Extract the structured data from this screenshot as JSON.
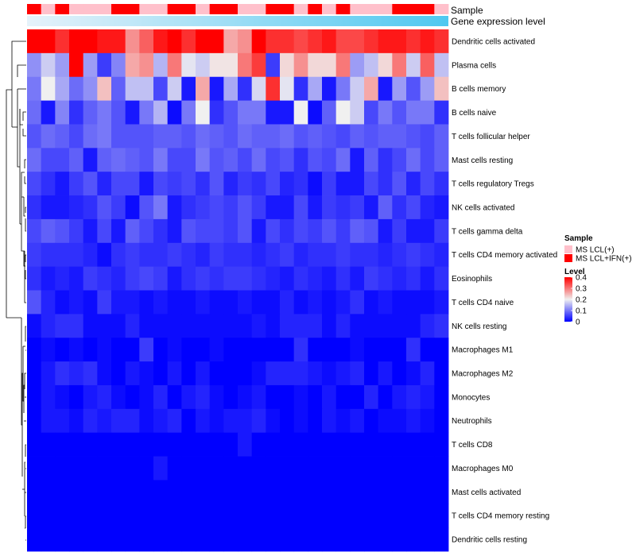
{
  "chart_data": {
    "type": "heatmap",
    "annotation_titles": {
      "sample": "Sample",
      "expression": "Gene expression level"
    },
    "legend": {
      "sample_title": "Sample",
      "sample_entries": [
        {
          "label": "MS LCL(+)",
          "color": "#ffc0cb"
        },
        {
          "label": "MS LCL+IFN(+)",
          "color": "#ff0000"
        }
      ],
      "level_title": "Level",
      "level_ticks": [
        "0.4",
        "0.3",
        "0.2",
        "0.1",
        "0"
      ],
      "level_tick_values": [
        0.4,
        0.3,
        0.2,
        0.1,
        0
      ]
    },
    "scale": {
      "min": 0,
      "mid": 0.2,
      "max": 0.4,
      "low_color": "#0000ff",
      "mid_color": "#f0f0f0",
      "high_color": "#ff0000"
    },
    "expression_bar": {
      "from_color": "#e6f2fa",
      "to_color": "#4fc8f0"
    },
    "sample_groups": [
      1,
      0,
      1,
      0,
      0,
      0,
      1,
      1,
      0,
      0,
      1,
      1,
      0,
      1,
      1,
      0,
      0,
      1,
      1,
      0,
      1,
      0,
      1,
      0,
      0,
      0,
      1,
      1,
      1,
      0
    ],
    "rows": [
      "Dendritic cells activated",
      "Plasma cells",
      "B cells memory",
      "B cells naive",
      "T cells follicular helper",
      "Mast cells resting",
      "T cells regulatory  Tregs",
      "NK cells activated",
      "T cells gamma delta",
      "T cells CD4 memory activated",
      "Eosinophils",
      "T cells CD4 naive",
      "NK cells resting",
      "Macrophages M1",
      "Macrophages M2",
      "Monocytes",
      "Neutrophils",
      "T cells CD8",
      "Macrophages M0",
      "Mast cells activated",
      "T cells CD4 memory resting",
      "Dendritic cells resting"
    ],
    "values": [
      [
        0.4,
        0.4,
        0.36,
        0.4,
        0.4,
        0.38,
        0.38,
        0.28,
        0.32,
        0.38,
        0.4,
        0.36,
        0.4,
        0.4,
        0.26,
        0.28,
        0.4,
        0.36,
        0.36,
        0.34,
        0.36,
        0.38,
        0.34,
        0.34,
        0.36,
        0.38,
        0.38,
        0.36,
        0.38,
        0.36
      ],
      [
        0.12,
        0.17,
        0.13,
        0.4,
        0.13,
        0.05,
        0.11,
        0.26,
        0.28,
        0.15,
        0.3,
        0.19,
        0.17,
        0.21,
        0.21,
        0.3,
        0.35,
        0.05,
        0.22,
        0.28,
        0.22,
        0.22,
        0.3,
        0.13,
        0.16,
        0.22,
        0.3,
        0.17,
        0.32,
        0.16
      ],
      [
        0.1,
        0.2,
        0.14,
        0.09,
        0.12,
        0.24,
        0.08,
        0.16,
        0.16,
        0.06,
        0.17,
        0.02,
        0.26,
        0.02,
        0.14,
        0.04,
        0.18,
        0.36,
        0.19,
        0.04,
        0.14,
        0.02,
        0.1,
        0.17,
        0.26,
        0.02,
        0.13,
        0.07,
        0.13,
        0.24
      ],
      [
        0.09,
        0.02,
        0.11,
        0.04,
        0.08,
        0.1,
        0.07,
        0.02,
        0.1,
        0.15,
        0.01,
        0.1,
        0.2,
        0.04,
        0.07,
        0.1,
        0.1,
        0.02,
        0.02,
        0.2,
        0.01,
        0.08,
        0.2,
        0.17,
        0.06,
        0.1,
        0.07,
        0.1,
        0.1,
        0.04
      ],
      [
        0.07,
        0.09,
        0.08,
        0.06,
        0.09,
        0.1,
        0.07,
        0.07,
        0.07,
        0.08,
        0.08,
        0.07,
        0.09,
        0.08,
        0.07,
        0.09,
        0.08,
        0.08,
        0.09,
        0.07,
        0.08,
        0.07,
        0.06,
        0.08,
        0.07,
        0.08,
        0.08,
        0.07,
        0.06,
        0.08
      ],
      [
        0.09,
        0.06,
        0.06,
        0.08,
        0.02,
        0.08,
        0.09,
        0.08,
        0.07,
        0.1,
        0.06,
        0.06,
        0.1,
        0.07,
        0.08,
        0.06,
        0.09,
        0.06,
        0.07,
        0.04,
        0.07,
        0.06,
        0.09,
        0.02,
        0.08,
        0.04,
        0.06,
        0.09,
        0.06,
        0.08
      ],
      [
        0.06,
        0.04,
        0.02,
        0.05,
        0.07,
        0.03,
        0.06,
        0.06,
        0.02,
        0.06,
        0.05,
        0.06,
        0.04,
        0.07,
        0.03,
        0.05,
        0.04,
        0.06,
        0.03,
        0.04,
        0.01,
        0.05,
        0.02,
        0.02,
        0.06,
        0.04,
        0.07,
        0.03,
        0.06,
        0.04
      ],
      [
        0.04,
        0.02,
        0.02,
        0.03,
        0.04,
        0.07,
        0.05,
        0.01,
        0.07,
        0.1,
        0.02,
        0.04,
        0.05,
        0.06,
        0.05,
        0.07,
        0.05,
        0.02,
        0.02,
        0.06,
        0.02,
        0.05,
        0.04,
        0.05,
        0.02,
        0.08,
        0.04,
        0.06,
        0.03,
        0.02
      ],
      [
        0.06,
        0.08,
        0.07,
        0.05,
        0.02,
        0.06,
        0.02,
        0.08,
        0.06,
        0.04,
        0.02,
        0.07,
        0.06,
        0.06,
        0.05,
        0.07,
        0.02,
        0.06,
        0.04,
        0.06,
        0.05,
        0.07,
        0.05,
        0.08,
        0.07,
        0.02,
        0.05,
        0.02,
        0.02,
        0.05
      ],
      [
        0.05,
        0.04,
        0.04,
        0.04,
        0.03,
        0.01,
        0.04,
        0.05,
        0.04,
        0.04,
        0.05,
        0.04,
        0.03,
        0.05,
        0.04,
        0.04,
        0.03,
        0.04,
        0.05,
        0.03,
        0.04,
        0.04,
        0.05,
        0.04,
        0.04,
        0.03,
        0.04,
        0.05,
        0.04,
        0.03
      ],
      [
        0.04,
        0.02,
        0.03,
        0.02,
        0.05,
        0.04,
        0.03,
        0.05,
        0.06,
        0.05,
        0.02,
        0.04,
        0.05,
        0.04,
        0.05,
        0.05,
        0.04,
        0.03,
        0.02,
        0.04,
        0.03,
        0.02,
        0.04,
        0.02,
        0.05,
        0.04,
        0.03,
        0.04,
        0.02,
        0.04
      ],
      [
        0.07,
        0.03,
        0.01,
        0.02,
        0.01,
        0.05,
        0.02,
        0.02,
        0.01,
        0.02,
        0.01,
        0.01,
        0.02,
        0.01,
        0.01,
        0.02,
        0.01,
        0.01,
        0.03,
        0.01,
        0.02,
        0.01,
        0.02,
        0.04,
        0.01,
        0.02,
        0.01,
        0.01,
        0.01,
        0.02
      ],
      [
        0.01,
        0.03,
        0.04,
        0.04,
        0.01,
        0.01,
        0.01,
        0.03,
        0.01,
        0.01,
        0.01,
        0.01,
        0.01,
        0.01,
        0.01,
        0.01,
        0.02,
        0.01,
        0.03,
        0.03,
        0.03,
        0.01,
        0.03,
        0.01,
        0.01,
        0.01,
        0.01,
        0.01,
        0.03,
        0.04
      ],
      [
        0.0,
        0.01,
        0.0,
        0.01,
        0.0,
        0.01,
        0.0,
        0.0,
        0.05,
        0.0,
        0.01,
        0.0,
        0.0,
        0.01,
        0.0,
        0.0,
        0.0,
        0.0,
        0.0,
        0.04,
        0.0,
        0.0,
        0.0,
        0.01,
        0.0,
        0.0,
        0.0,
        0.04,
        0.0,
        0.0
      ],
      [
        0.0,
        0.02,
        0.04,
        0.03,
        0.04,
        0.01,
        0.0,
        0.02,
        0.01,
        0.0,
        0.02,
        0.0,
        0.02,
        0.0,
        0.0,
        0.0,
        0.01,
        0.03,
        0.03,
        0.03,
        0.02,
        0.01,
        0.02,
        0.03,
        0.0,
        0.02,
        0.0,
        0.01,
        0.03,
        0.0
      ],
      [
        0.0,
        0.02,
        0.01,
        0.0,
        0.02,
        0.03,
        0.01,
        0.0,
        0.01,
        0.03,
        0.0,
        0.02,
        0.03,
        0.01,
        0.0,
        0.01,
        0.02,
        0.0,
        0.0,
        0.01,
        0.0,
        0.02,
        0.0,
        0.0,
        0.03,
        0.0,
        0.02,
        0.03,
        0.02,
        0.0
      ],
      [
        0.0,
        0.02,
        0.02,
        0.01,
        0.03,
        0.02,
        0.03,
        0.03,
        0.01,
        0.02,
        0.03,
        0.0,
        0.02,
        0.01,
        0.02,
        0.02,
        0.03,
        0.01,
        0.0,
        0.01,
        0.0,
        0.02,
        0.01,
        0.02,
        0.0,
        0.01,
        0.01,
        0.02,
        0.01,
        0.0
      ],
      [
        0.0,
        0.0,
        0.0,
        0.0,
        0.0,
        0.0,
        0.0,
        0.0,
        0.0,
        0.0,
        0.0,
        0.0,
        0.0,
        0.0,
        0.0,
        0.02,
        0.0,
        0.0,
        0.0,
        0.0,
        0.0,
        0.0,
        0.0,
        0.0,
        0.0,
        0.0,
        0.0,
        0.0,
        0.0,
        0.0
      ],
      [
        0.0,
        0.0,
        0.0,
        0.0,
        0.0,
        0.0,
        0.0,
        0.0,
        0.0,
        0.02,
        0.0,
        0.0,
        0.0,
        0.0,
        0.0,
        0.0,
        0.0,
        0.0,
        0.0,
        0.0,
        0.0,
        0.0,
        0.0,
        0.0,
        0.0,
        0.0,
        0.0,
        0.0,
        0.0,
        0.0
      ],
      [
        0.0,
        0.0,
        0.0,
        0.0,
        0.0,
        0.0,
        0.0,
        0.0,
        0.0,
        0.0,
        0.0,
        0.0,
        0.0,
        0.0,
        0.0,
        0.0,
        0.0,
        0.0,
        0.0,
        0.0,
        0.0,
        0.0,
        0.0,
        0.0,
        0.0,
        0.0,
        0.0,
        0.0,
        0.0,
        0.0
      ],
      [
        0.0,
        0.0,
        0.0,
        0.0,
        0.0,
        0.0,
        0.0,
        0.0,
        0.0,
        0.0,
        0.0,
        0.0,
        0.0,
        0.0,
        0.0,
        0.0,
        0.0,
        0.0,
        0.0,
        0.0,
        0.0,
        0.0,
        0.0,
        0.0,
        0.0,
        0.0,
        0.0,
        0.0,
        0.0,
        0.0
      ],
      [
        0.0,
        0.0,
        0.0,
        0.0,
        0.0,
        0.0,
        0.0,
        0.0,
        0.0,
        0.0,
        0.0,
        0.0,
        0.0,
        0.0,
        0.0,
        0.0,
        0.0,
        0.0,
        0.0,
        0.0,
        0.0,
        0.0,
        0.0,
        0.0,
        0.0,
        0.0,
        0.0,
        0.0,
        0.0,
        0.0
      ]
    ]
  }
}
